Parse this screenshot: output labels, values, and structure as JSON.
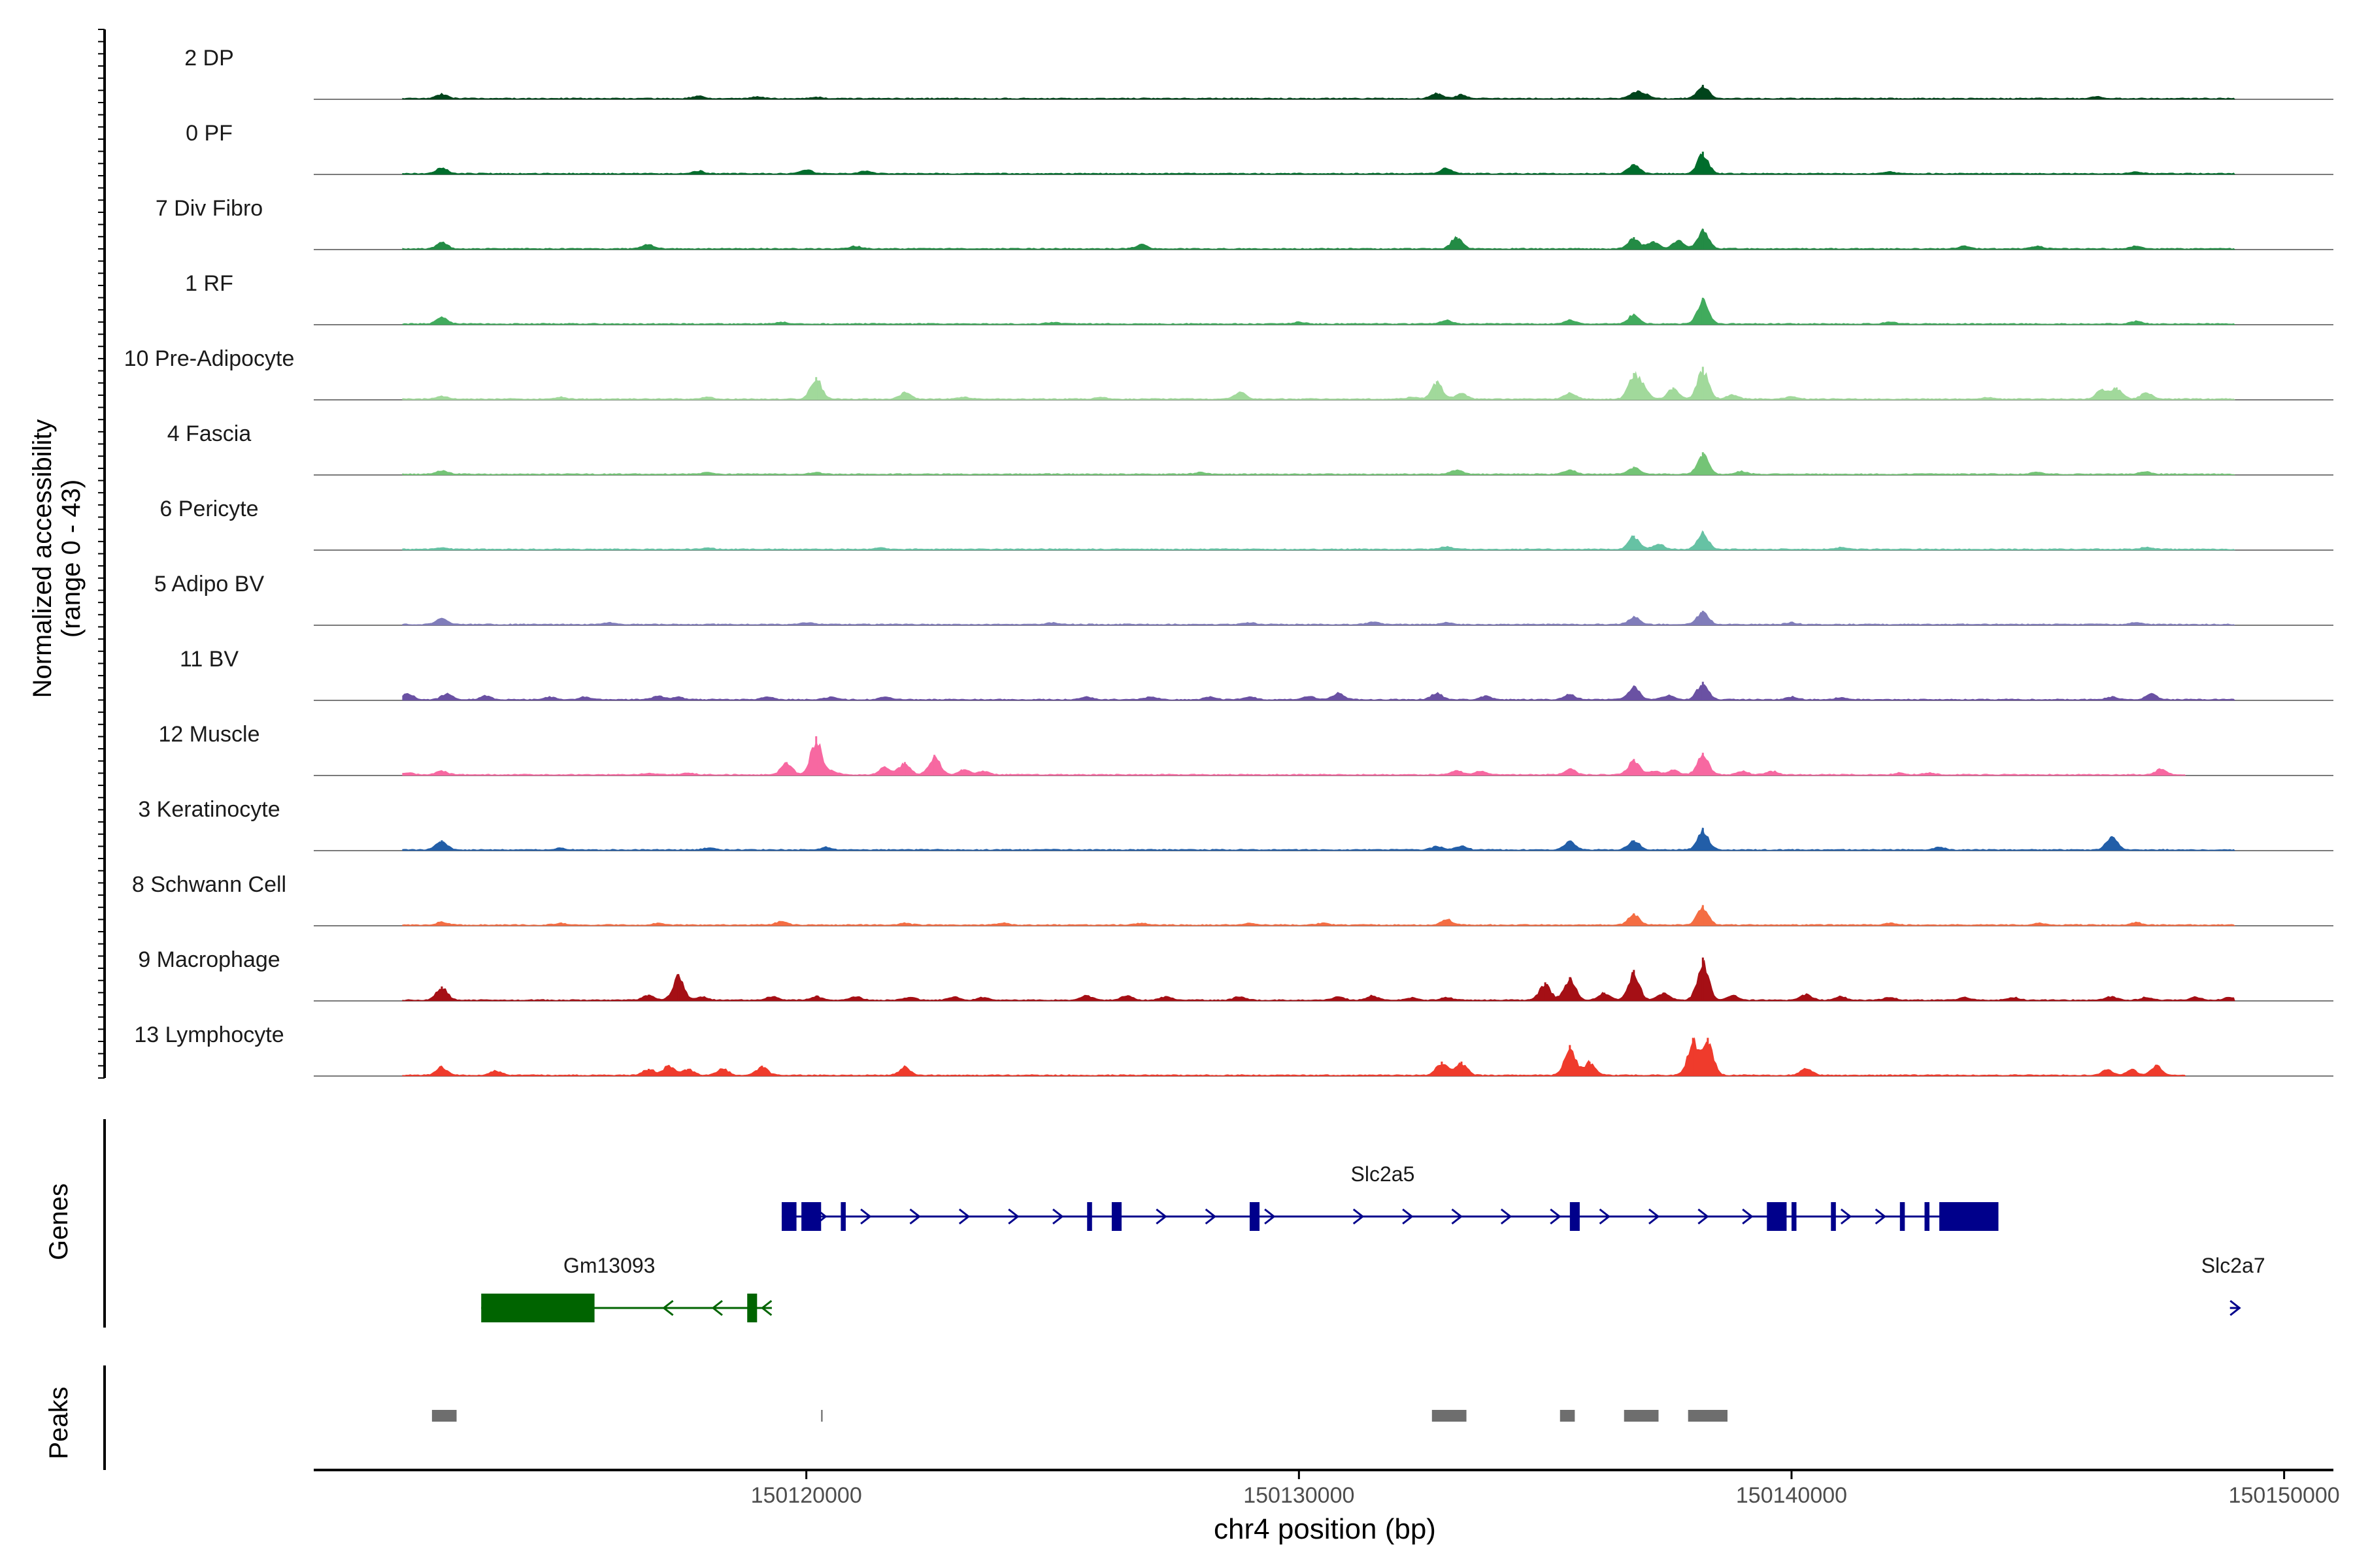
{
  "chart_data": {
    "type": "area",
    "title": "",
    "ylabel": "Normalized accessibility",
    "ylabel_range": "(range 0 - 43)",
    "xlabel": "chr4 position (bp)",
    "xlim": [
      150110000,
      150151000
    ],
    "ylim": [
      0,
      43
    ],
    "x_ticks": [
      {
        "value": 150120000,
        "label": "150120000"
      },
      {
        "value": 150130000,
        "label": "150130000"
      },
      {
        "value": 150140000,
        "label": "150140000"
      },
      {
        "value": 150150000,
        "label": "150150000"
      }
    ],
    "series": [
      {
        "name": "2 DP",
        "color": "#00441b",
        "start": 150111800,
        "end": 150149000,
        "peaks": [
          [
            150112600,
            5
          ],
          [
            150117800,
            3
          ],
          [
            150119000,
            2
          ],
          [
            150120200,
            1.5
          ],
          [
            150132800,
            6
          ],
          [
            150133300,
            4
          ],
          [
            150136800,
            6
          ],
          [
            150137000,
            5
          ],
          [
            150138200,
            14
          ],
          [
            150146200,
            2
          ]
        ]
      },
      {
        "name": "0 PF",
        "color": "#006d2c",
        "start": 150111800,
        "end": 150149000,
        "peaks": [
          [
            150112600,
            6
          ],
          [
            150117800,
            3
          ],
          [
            150120000,
            4
          ],
          [
            150121200,
            3
          ],
          [
            150133000,
            6
          ],
          [
            150136800,
            10
          ],
          [
            150138200,
            22
          ],
          [
            150142000,
            2
          ],
          [
            150147000,
            2
          ]
        ]
      },
      {
        "name": "7 Div Fibro",
        "color": "#238b45",
        "start": 150111800,
        "end": 150149000,
        "peaks": [
          [
            150112600,
            7
          ],
          [
            150116800,
            5
          ],
          [
            150121000,
            3
          ],
          [
            150126800,
            5
          ],
          [
            150133200,
            12
          ],
          [
            150136800,
            12
          ],
          [
            150137200,
            8
          ],
          [
            150137700,
            9
          ],
          [
            150138200,
            20
          ],
          [
            150143500,
            3
          ],
          [
            150145000,
            3
          ],
          [
            150147000,
            3
          ]
        ]
      },
      {
        "name": "1 RF",
        "color": "#41ab5d",
        "start": 150111800,
        "end": 150149000,
        "peaks": [
          [
            150112600,
            7
          ],
          [
            150119500,
            2
          ],
          [
            150125000,
            2
          ],
          [
            150130000,
            2
          ],
          [
            150133000,
            4
          ],
          [
            150135500,
            4
          ],
          [
            150136800,
            10
          ],
          [
            150138200,
            26
          ],
          [
            150142000,
            2
          ],
          [
            150147000,
            3
          ]
        ]
      },
      {
        "name": "10 Pre-Adipocyte",
        "color": "#a1d99b",
        "start": 150111800,
        "end": 150149000,
        "peaks": [
          [
            150112600,
            3
          ],
          [
            150115000,
            2
          ],
          [
            150118000,
            2
          ],
          [
            150120200,
            22
          ],
          [
            150122000,
            7
          ],
          [
            150123200,
            2
          ],
          [
            150126000,
            2
          ],
          [
            150128800,
            8
          ],
          [
            150132300,
            2
          ],
          [
            150132800,
            18
          ],
          [
            150133300,
            6
          ],
          [
            150135500,
            7
          ],
          [
            150136800,
            26
          ],
          [
            150137000,
            10
          ],
          [
            150137600,
            12
          ],
          [
            150138200,
            32
          ],
          [
            150138800,
            5
          ],
          [
            150140000,
            3
          ],
          [
            150144000,
            2
          ],
          [
            150146300,
            10
          ],
          [
            150146600,
            12
          ],
          [
            150147200,
            7
          ]
        ]
      },
      {
        "name": "4 Fascia",
        "color": "#74c476",
        "start": 150111800,
        "end": 150149000,
        "peaks": [
          [
            150112600,
            4
          ],
          [
            150118000,
            2
          ],
          [
            150120200,
            2
          ],
          [
            150128000,
            2
          ],
          [
            150133200,
            5
          ],
          [
            150135500,
            5
          ],
          [
            150136800,
            8
          ],
          [
            150138200,
            22
          ],
          [
            150139000,
            3
          ],
          [
            150145000,
            2
          ],
          [
            150147200,
            3
          ]
        ]
      },
      {
        "name": "6 Pericyte",
        "color": "#66c2a4",
        "start": 150111800,
        "end": 150149000,
        "peaks": [
          [
            150112600,
            2
          ],
          [
            150118000,
            1.5
          ],
          [
            150121500,
            1.5
          ],
          [
            150133000,
            3
          ],
          [
            150136800,
            14
          ],
          [
            150137300,
            6
          ],
          [
            150138200,
            18
          ],
          [
            150141000,
            2
          ],
          [
            150147200,
            2
          ]
        ]
      },
      {
        "name": "5 Adipo BV",
        "color": "#807dba",
        "start": 150111800,
        "end": 150149000,
        "peaks": [
          [
            150112600,
            7
          ],
          [
            150116000,
            2
          ],
          [
            150120000,
            2
          ],
          [
            150125000,
            2
          ],
          [
            150129000,
            2
          ],
          [
            150131500,
            3
          ],
          [
            150133000,
            2
          ],
          [
            150136800,
            8
          ],
          [
            150138200,
            14
          ],
          [
            150140000,
            2
          ],
          [
            150147000,
            2
          ]
        ]
      },
      {
        "name": "11 BV",
        "color": "#6a51a3",
        "start": 150111800,
        "end": 150149000,
        "peaks": [
          [
            150111900,
            7
          ],
          [
            150112700,
            6
          ],
          [
            150113500,
            4
          ],
          [
            150114800,
            3
          ],
          [
            150115500,
            3
          ],
          [
            150117000,
            4
          ],
          [
            150117400,
            3
          ],
          [
            150119200,
            3
          ],
          [
            150120500,
            3
          ],
          [
            150121600,
            3
          ],
          [
            150125700,
            3
          ],
          [
            150127000,
            3
          ],
          [
            150128200,
            3
          ],
          [
            150129000,
            3
          ],
          [
            150130200,
            4
          ],
          [
            150130800,
            7
          ],
          [
            150132800,
            7
          ],
          [
            150133800,
            4
          ],
          [
            150135500,
            6
          ],
          [
            150136800,
            14
          ],
          [
            150137500,
            5
          ],
          [
            150138200,
            18
          ],
          [
            150140000,
            3
          ],
          [
            150141000,
            2
          ],
          [
            150146500,
            3
          ],
          [
            150147300,
            6
          ]
        ]
      },
      {
        "name": "12 Muscle",
        "color": "#f768a1",
        "start": 150111800,
        "end": 150148000,
        "peaks": [
          [
            150111900,
            2
          ],
          [
            150112600,
            4
          ],
          [
            150116800,
            2
          ],
          [
            150117600,
            2
          ],
          [
            150119600,
            13
          ],
          [
            150120200,
            38
          ],
          [
            150120500,
            4
          ],
          [
            150121600,
            8
          ],
          [
            150122000,
            13
          ],
          [
            150122600,
            20
          ],
          [
            150123200,
            6
          ],
          [
            150123600,
            4
          ],
          [
            150133200,
            5
          ],
          [
            150133700,
            4
          ],
          [
            150135500,
            6
          ],
          [
            150136800,
            16
          ],
          [
            150137200,
            4
          ],
          [
            150137600,
            5
          ],
          [
            150138200,
            22
          ],
          [
            150139000,
            4
          ],
          [
            150139600,
            4
          ],
          [
            150142200,
            2
          ],
          [
            150142800,
            2
          ],
          [
            150147500,
            6
          ]
        ]
      },
      {
        "name": "3 Keratinocyte",
        "color": "#225ea8",
        "start": 150111800,
        "end": 150149000,
        "peaks": [
          [
            150112600,
            10
          ],
          [
            150115000,
            2
          ],
          [
            150118000,
            2
          ],
          [
            150120400,
            3
          ],
          [
            150132800,
            4
          ],
          [
            150133300,
            4
          ],
          [
            150135500,
            9
          ],
          [
            150136800,
            10
          ],
          [
            150138200,
            22
          ],
          [
            150143000,
            3
          ],
          [
            150146500,
            14
          ]
        ]
      },
      {
        "name": "8 Schwann Cell",
        "color": "#f46d43",
        "start": 150111800,
        "end": 150149000,
        "peaks": [
          [
            150112600,
            3
          ],
          [
            150115000,
            2
          ],
          [
            150117000,
            2
          ],
          [
            150119500,
            4
          ],
          [
            150122000,
            2
          ],
          [
            150124000,
            2
          ],
          [
            150126800,
            2
          ],
          [
            150129000,
            2
          ],
          [
            150130500,
            2
          ],
          [
            150133000,
            6
          ],
          [
            150136800,
            12
          ],
          [
            150138200,
            20
          ],
          [
            150142000,
            2
          ],
          [
            150145000,
            2
          ],
          [
            150147000,
            3
          ]
        ]
      },
      {
        "name": "9 Macrophage",
        "color": "#a50f15",
        "start": 150111800,
        "end": 150149000,
        "peaks": [
          [
            150112600,
            14
          ],
          [
            150116800,
            6
          ],
          [
            150117400,
            26
          ],
          [
            150117900,
            4
          ],
          [
            150119300,
            4
          ],
          [
            150120200,
            4
          ],
          [
            150121000,
            4
          ],
          [
            150122100,
            3
          ],
          [
            150123000,
            4
          ],
          [
            150123600,
            3
          ],
          [
            150125700,
            5
          ],
          [
            150126500,
            5
          ],
          [
            150127300,
            4
          ],
          [
            150128800,
            4
          ],
          [
            150130800,
            4
          ],
          [
            150131500,
            5
          ],
          [
            150132300,
            3
          ],
          [
            150133000,
            3
          ],
          [
            150135000,
            18
          ],
          [
            150135500,
            23
          ],
          [
            150136200,
            8
          ],
          [
            150136800,
            30
          ],
          [
            150137400,
            8
          ],
          [
            150138200,
            42
          ],
          [
            150138800,
            5
          ],
          [
            150140300,
            6
          ],
          [
            150141000,
            4
          ],
          [
            150142000,
            3
          ],
          [
            150143500,
            3
          ],
          [
            150144500,
            3
          ],
          [
            150146500,
            4
          ],
          [
            150147200,
            3
          ],
          [
            150148200,
            3
          ],
          [
            150148900,
            3
          ]
        ]
      },
      {
        "name": "13 Lymphocyte",
        "color": "#ef3b2c",
        "start": 150111800,
        "end": 150148000,
        "peaks": [
          [
            150112600,
            9
          ],
          [
            150113700,
            5
          ],
          [
            150116800,
            7
          ],
          [
            150117200,
            10
          ],
          [
            150117600,
            7
          ],
          [
            150118300,
            7
          ],
          [
            150119100,
            10
          ],
          [
            150122000,
            9
          ],
          [
            150132900,
            14
          ],
          [
            150133300,
            14
          ],
          [
            150135500,
            30
          ],
          [
            150135900,
            14
          ],
          [
            150138000,
            37
          ],
          [
            150138300,
            37
          ],
          [
            150140300,
            7
          ],
          [
            150146400,
            6
          ],
          [
            150146900,
            6
          ],
          [
            150147400,
            10
          ]
        ]
      }
    ],
    "genes": [
      {
        "name": "Slc2a5",
        "strand": "+",
        "color": "#00008b",
        "start": 150119500,
        "end": 150144200,
        "exons": [
          [
            150119500,
            150119800
          ],
          [
            150119900,
            150120300
          ],
          [
            150120700,
            150120800
          ],
          [
            150125700,
            150125800
          ],
          [
            150126200,
            150126400
          ],
          [
            150129000,
            150129200
          ],
          [
            150135500,
            150135700
          ],
          [
            150139500,
            150139900
          ],
          [
            150140000,
            150140100
          ],
          [
            150140800,
            150140900
          ],
          [
            150142200,
            150142300
          ],
          [
            150142700,
            150142800
          ],
          [
            150143000,
            150144200
          ]
        ],
        "arrows": [
          150120300,
          150121200,
          150122200,
          150123200,
          150124200,
          150125100,
          150127200,
          150128200,
          150129400,
          150131200,
          150132200,
          150133200,
          150134200,
          150135200,
          150136200,
          150137200,
          150138200,
          150139100,
          150141100,
          150141800
        ]
      },
      {
        "name": "Gm13093",
        "strand": "-",
        "color": "#006400",
        "start": 150113400,
        "end": 150119300,
        "exons": [
          [
            150113400,
            150115700
          ],
          [
            150118800,
            150119000
          ]
        ],
        "arrows": [
          150117200,
          150118200,
          150119200
        ]
      },
      {
        "name": "Slc2a7",
        "strand": "+",
        "color": "#00008b",
        "start": 150148900,
        "end": 150149100,
        "exons": [],
        "arrows": [
          150149000
        ]
      }
    ],
    "peaks_track": {
      "color": "#6e6e6e",
      "regions": [
        [
          150112400,
          150112900
        ],
        [
          150120300,
          150120330
        ],
        [
          150132700,
          150133400
        ],
        [
          150135300,
          150135600
        ],
        [
          150136600,
          150137300
        ],
        [
          150137900,
          150138700
        ]
      ]
    },
    "panel_labels": {
      "genes": "Genes",
      "peaks": "Peaks"
    }
  }
}
